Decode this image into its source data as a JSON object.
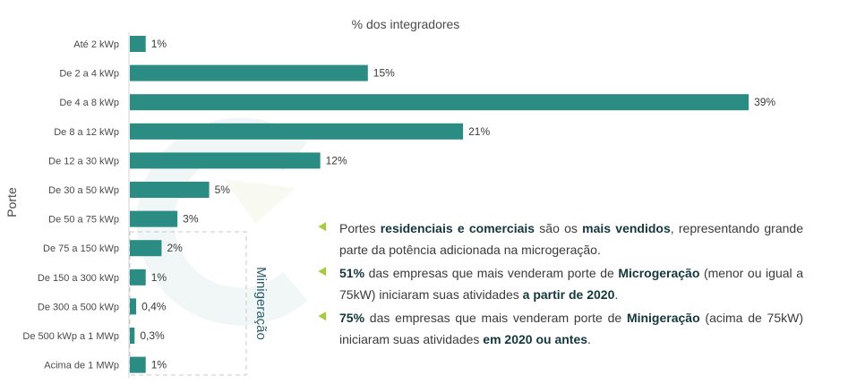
{
  "chart_data": {
    "type": "bar",
    "orientation": "horizontal",
    "title": "% dos integradores",
    "ylabel": "Porte",
    "categories": [
      "Até 2 kWp",
      "De 2 a 4 kWp",
      "De 4 a 8 kWp",
      "De 8 a 12 kWp",
      "De 12 a 30 kWp",
      "De 30 a 50 kWp",
      "De 50 a 75 kWp",
      "De 75 a 150 kWp",
      "De 150 a 300 kWp",
      "De 300 a 500 kWp",
      "De 500 kWp a 1 MWp",
      "Acima de 1 MWp"
    ],
    "values": [
      1,
      15,
      39,
      21,
      12,
      5,
      3,
      2,
      1,
      0.4,
      0.3,
      1
    ],
    "value_labels": [
      "1%",
      "15%",
      "39%",
      "21%",
      "12%",
      "5%",
      "3%",
      "2%",
      "1%",
      "0,4%",
      "0,3%",
      "1%"
    ],
    "xlim": [
      0,
      39
    ],
    "bar_color": "#2a8c82",
    "group_label": "Minigeração",
    "group_range": [
      "De 75 a 150 kWp",
      "Acima de 1 MWp"
    ]
  },
  "bullets": [
    [
      {
        "t": "Portes "
      },
      {
        "t": "residenciais e comerciais",
        "b": true
      },
      {
        "t": " são os "
      },
      {
        "t": "mais vendidos",
        "b": true
      },
      {
        "t": ", representando grande parte da potência adicionada na microgeração."
      }
    ],
    [
      {
        "t": "51%",
        "b": true
      },
      {
        "t": " das empresas que mais venderam porte de "
      },
      {
        "t": "Microgeração",
        "b": true
      },
      {
        "t": " (menor ou igual a 75kW) iniciaram suas atividades "
      },
      {
        "t": "a partir de 2020",
        "b": true
      },
      {
        "t": "."
      }
    ],
    [
      {
        "t": "75%",
        "b": true
      },
      {
        "t": " das empresas que mais venderam porte de "
      },
      {
        "t": "Minigeração",
        "b": true
      },
      {
        "t": " (acima de 75kW) iniciaram suas atividades "
      },
      {
        "t": "em 2020 ou antes",
        "b": true
      },
      {
        "t": "."
      }
    ]
  ],
  "colors": {
    "bar": "#2a8c82",
    "bullet_arrow": "#a7c943",
    "bold_text": "#14373d"
  }
}
